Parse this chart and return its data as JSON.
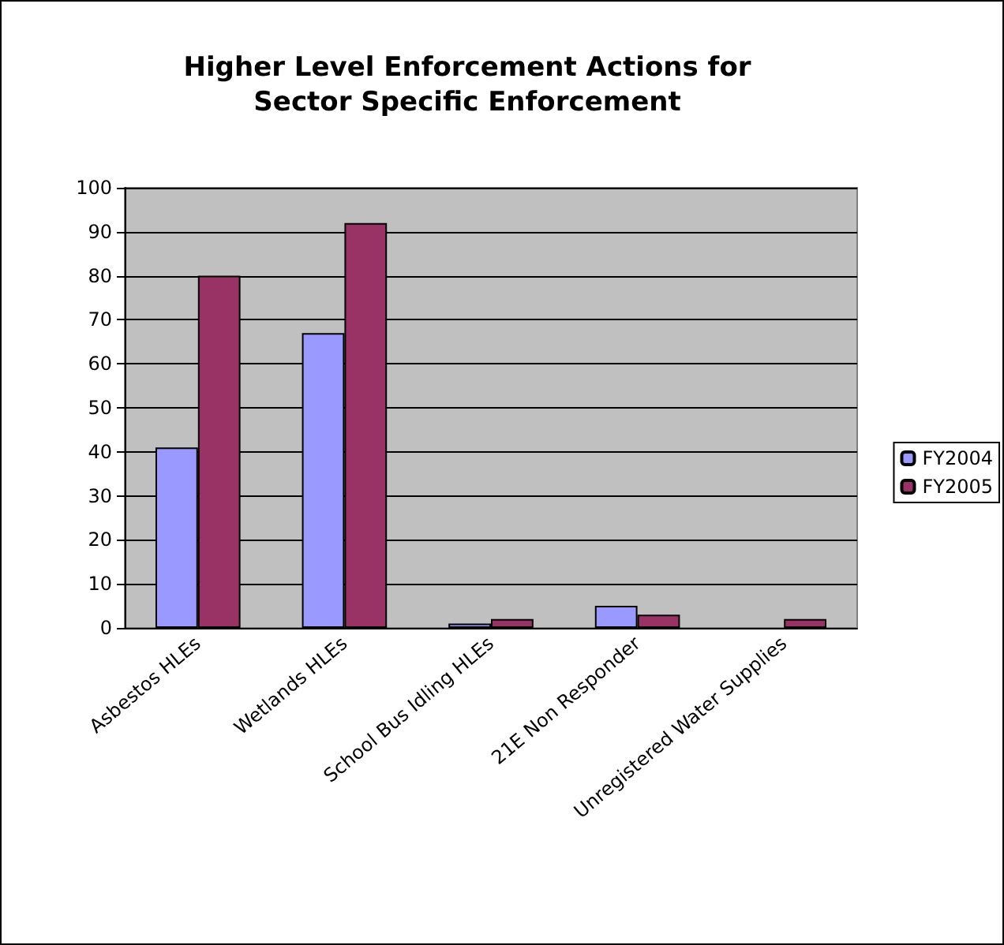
{
  "chart_data": {
    "type": "bar",
    "title": "Higher Level Enforcement Actions for\nSector Specific Enforcement",
    "categories": [
      "Asbestos HLEs",
      "Wetlands HLEs",
      "School Bus Idling HLEs",
      "21E Non Responder",
      "Unregistered Water Supplies"
    ],
    "series": [
      {
        "name": "FY2004",
        "color": "#9999ff",
        "values": [
          41,
          67,
          1,
          5,
          null
        ]
      },
      {
        "name": "FY2005",
        "color": "#993366",
        "values": [
          80,
          92,
          2,
          3,
          2
        ]
      }
    ],
    "ylim": [
      0,
      100
    ],
    "yticks": [
      0,
      10,
      20,
      30,
      40,
      50,
      60,
      70,
      80,
      90,
      100
    ],
    "grid": "y",
    "legend": "right"
  }
}
